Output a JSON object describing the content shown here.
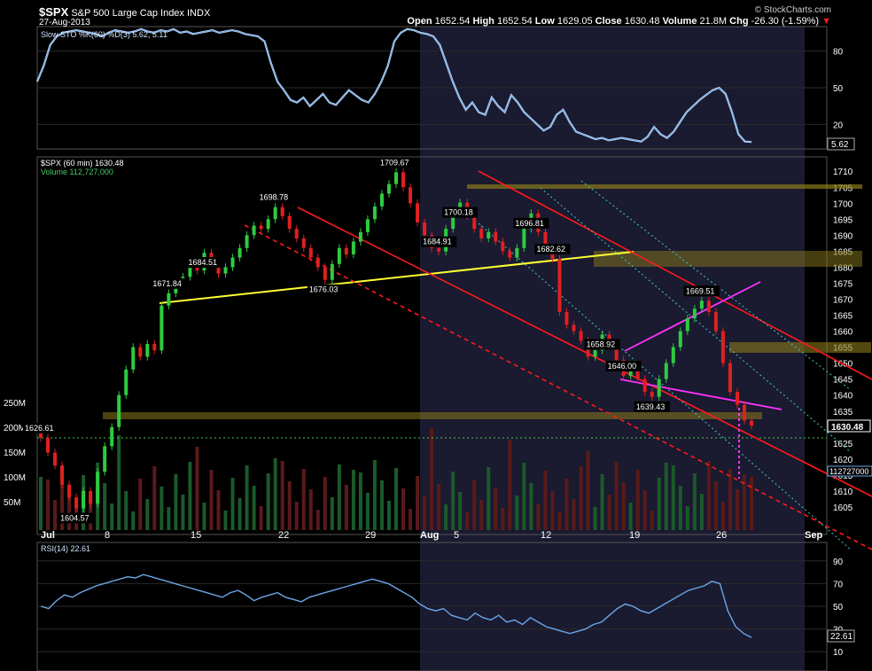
{
  "header": {
    "symbol": "$SPX",
    "name": "S&P 500 Large Cap Index",
    "exchange": "INDX",
    "date": "27-Aug-2013",
    "open_label": "Open",
    "open": "1652.54",
    "high_label": "High",
    "high": "1652.54",
    "low_label": "Low",
    "low": "1629.05",
    "close_label": "Close",
    "close": "1630.48",
    "volume_label": "Volume",
    "volume": "21.8M",
    "chg_label": "Chg",
    "chg": "-26.30 (-1.59%)",
    "watermark": "© StockCharts.com"
  },
  "colors": {
    "background": "#000000",
    "shade": "#1a1a30",
    "up": "#2ecc40",
    "down": "#e02020",
    "line": "#6aa8e8",
    "trend_red": "#ff1a1a",
    "trend_yellow": "#ffff33",
    "trend_magenta": "#ff33ff",
    "zone": "#8a7a1a",
    "grid": "#2a2a2a"
  },
  "chart_data": [
    {
      "type": "line",
      "panel": "stochastic",
      "title": "Slow STO %K(60) %D(3) 5.62, 5.11",
      "ylim": [
        0,
        100
      ],
      "yticks": [
        20,
        50,
        80
      ],
      "last_value": "5.62",
      "x": [
        0,
        1,
        2,
        3,
        4,
        5,
        6,
        7,
        8,
        9,
        10,
        11,
        12,
        13,
        14,
        15,
        16,
        17,
        18,
        19,
        20,
        21,
        22,
        23,
        24,
        25,
        26,
        27,
        28,
        29,
        30,
        31,
        32,
        33,
        34,
        35,
        36,
        37,
        38,
        39,
        40,
        41,
        42,
        43,
        44,
        45,
        46,
        47,
        48,
        49,
        50,
        51,
        52,
        53,
        54,
        55,
        56,
        57,
        58,
        59,
        60,
        61,
        62,
        63,
        64,
        65,
        66,
        67,
        68,
        69,
        70,
        71,
        72,
        73,
        74,
        75,
        76,
        77,
        78,
        79,
        80,
        81,
        82,
        83,
        84,
        85,
        86,
        87,
        88,
        89,
        90,
        91,
        92,
        93,
        94,
        95,
        96,
        97,
        98,
        99,
        100,
        101,
        102,
        103,
        104,
        105,
        106,
        107,
        108,
        109,
        110
      ],
      "values": [
        55,
        68,
        85,
        92,
        95,
        96,
        97,
        96,
        95,
        94,
        92,
        95,
        97,
        96,
        95,
        96,
        98,
        96,
        95,
        97,
        96,
        98,
        95,
        96,
        94,
        95,
        96,
        97,
        95,
        96,
        97,
        96,
        94,
        93,
        92,
        88,
        70,
        55,
        48,
        40,
        38,
        42,
        35,
        40,
        45,
        38,
        36,
        42,
        48,
        44,
        40,
        38,
        45,
        55,
        68,
        88,
        95,
        98,
        97,
        95,
        94,
        92,
        85,
        70,
        55,
        42,
        32,
        38,
        30,
        28,
        42,
        35,
        30,
        44,
        38,
        30,
        25,
        20,
        15,
        18,
        28,
        32,
        22,
        14,
        12,
        10,
        8,
        9,
        7,
        8,
        9,
        8,
        7,
        6,
        10,
        18,
        12,
        9,
        14,
        22,
        30,
        35,
        40,
        44,
        48,
        50,
        45,
        30,
        12,
        6,
        5.62
      ]
    },
    {
      "type": "candlestick",
      "panel": "price",
      "title": "$SPX (60 min) 1630.48",
      "volume_legend": "Volume 112,727,000",
      "ylim": [
        1600,
        1712
      ],
      "yticks": [
        1605,
        1610,
        1615,
        1620,
        1625,
        1630,
        1635,
        1640,
        1645,
        1650,
        1655,
        1660,
        1665,
        1670,
        1675,
        1680,
        1685,
        1690,
        1695,
        1700,
        1705,
        1710
      ],
      "last_price": "1630.48",
      "x_ticks": [
        "Jul",
        "8",
        "15",
        "22",
        "29",
        "Aug",
        "5",
        "12",
        "19",
        "26",
        "Sep"
      ],
      "closes": [
        1626.61,
        1622,
        1618,
        1612,
        1608,
        1604.57,
        1610,
        1606,
        1616,
        1624,
        1630,
        1640,
        1648,
        1655,
        1652,
        1656,
        1654,
        1668,
        1671.84,
        1675,
        1677,
        1680,
        1679,
        1684.51,
        1682,
        1678,
        1680,
        1683,
        1686,
        1690,
        1693,
        1692,
        1695,
        1698.78,
        1696,
        1692,
        1689,
        1686,
        1683,
        1680,
        1676.03,
        1681,
        1686,
        1684,
        1688,
        1691,
        1695,
        1699,
        1703,
        1706,
        1709.67,
        1705,
        1700,
        1694,
        1690,
        1686,
        1684.91,
        1692,
        1697,
        1700.18,
        1696,
        1692,
        1689,
        1691,
        1688,
        1685,
        1683,
        1686,
        1692,
        1696.81,
        1691,
        1686,
        1682.62,
        1666,
        1662,
        1660,
        1657,
        1652,
        1654,
        1658.92,
        1656,
        1651,
        1646.0,
        1648,
        1645,
        1641,
        1639.43,
        1645,
        1650,
        1655,
        1660,
        1664,
        1667,
        1669.51,
        1666,
        1660,
        1650,
        1641,
        1637,
        1632,
        1630.48
      ],
      "price_labels": [
        "1626.61",
        "1604.57",
        "1671.84",
        "1684.51",
        "1698.78",
        "1676.03",
        "1709.67",
        "1700.18",
        "1684.91",
        "1696.81",
        "1682.62",
        "1658.92",
        "1646.00",
        "1639.43",
        "1669.51"
      ],
      "volume_axis": [
        "50M",
        "100M",
        "150M",
        "200M",
        "250M"
      ],
      "volume_last": "112727000"
    },
    {
      "type": "line",
      "panel": "rsi",
      "title": "RSI(14) 22.61",
      "ylim": [
        0,
        100
      ],
      "yticks": [
        10,
        30,
        50,
        70,
        90
      ],
      "last_value": "22.61",
      "values": [
        50,
        48,
        55,
        60,
        58,
        62,
        65,
        68,
        70,
        72,
        74,
        76,
        75,
        78,
        76,
        74,
        72,
        70,
        68,
        66,
        64,
        62,
        60,
        58,
        62,
        64,
        60,
        55,
        58,
        60,
        62,
        58,
        56,
        54,
        58,
        60,
        62,
        64,
        66,
        68,
        70,
        72,
        74,
        72,
        70,
        66,
        62,
        58,
        52,
        48,
        46,
        48,
        42,
        40,
        38,
        44,
        40,
        38,
        42,
        36,
        38,
        34,
        40,
        36,
        32,
        30,
        28,
        26,
        28,
        30,
        34,
        36,
        42,
        48,
        52,
        50,
        46,
        44,
        48,
        52,
        56,
        60,
        64,
        66,
        68,
        72,
        70,
        46,
        32,
        26,
        22.61
      ]
    }
  ]
}
